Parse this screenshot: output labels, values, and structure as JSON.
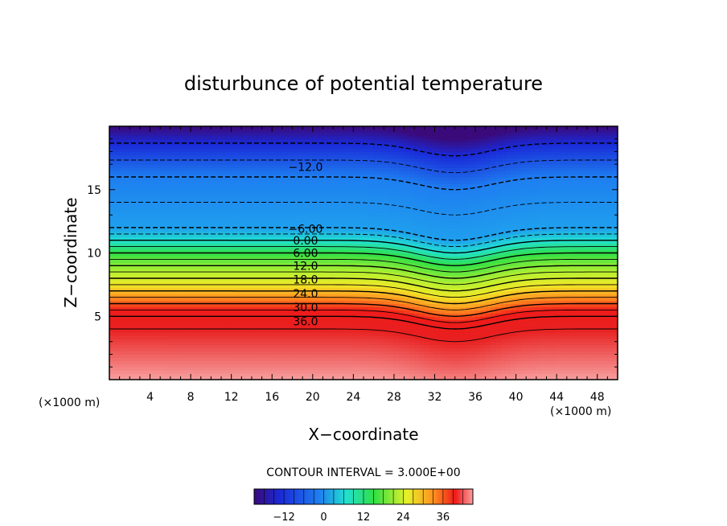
{
  "chart_data": {
    "type": "heatmap",
    "title": "disturbunce of potential temperature",
    "xlabel": "X−coordinate",
    "ylabel": "Z−coordinate",
    "x_unit": "(×1000 m)",
    "y_unit": "(×1000 m)",
    "xlim": [
      0,
      50
    ],
    "ylim": [
      0,
      20
    ],
    "x_ticks": [
      4,
      8,
      12,
      16,
      20,
      24,
      28,
      32,
      36,
      40,
      44,
      48
    ],
    "y_ticks": [
      5,
      10,
      15
    ],
    "contour_interval_text": "CONTOUR INTERVAL = 3.000E+00",
    "contour_labels": [
      {
        "text": "−12.0",
        "x": 19.3,
        "z": 16.8
      },
      {
        "text": "−6.00",
        "x": 19.3,
        "z": 11.9
      },
      {
        "text": "0.00",
        "x": 19.3,
        "z": 11.0
      },
      {
        "text": "6.00",
        "x": 19.3,
        "z": 10.0
      },
      {
        "text": "12.0",
        "x": 19.3,
        "z": 9.0
      },
      {
        "text": "18.0",
        "x": 19.3,
        "z": 7.9
      },
      {
        "text": "24.0",
        "x": 19.3,
        "z": 6.8
      },
      {
        "text": "30.0",
        "x": 19.3,
        "z": 5.7
      },
      {
        "text": "36.0",
        "x": 19.3,
        "z": 4.6
      }
    ],
    "colorbar": {
      "min": -21,
      "max": 45,
      "ticks": [
        -12,
        0,
        12,
        24,
        36
      ]
    },
    "field_profile": {
      "z": [
        0,
        4,
        5,
        11,
        12,
        16,
        20
      ],
      "value": [
        42,
        39,
        36,
        0,
        -6,
        -12,
        -21
      ]
    },
    "trough": {
      "x_center": 34,
      "width": 10,
      "depth_km": 1.0
    },
    "grid": false,
    "legend": "colorbar-bottom"
  }
}
